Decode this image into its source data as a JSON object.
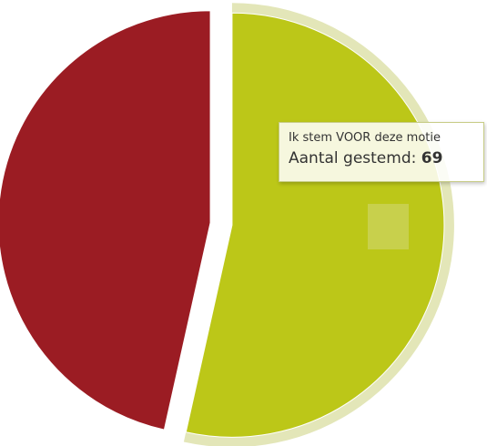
{
  "chart_data": {
    "type": "pie",
    "slices": [
      {
        "label": "Ik stem VOOR deze motie",
        "value": 69,
        "color": "#bcc718",
        "highlighted": true
      },
      {
        "label": "",
        "value": 60,
        "color": "#9b1c23",
        "highlighted": false
      }
    ],
    "colors": {
      "hover_halo": "#e3e6b8",
      "hover_marker": "#cad25a",
      "tooltip_border": "#c7cc86"
    },
    "tooltip": {
      "title": "Ik stem VOOR deze motie",
      "value_label": "Aantal gestemd:",
      "value": "69"
    }
  }
}
